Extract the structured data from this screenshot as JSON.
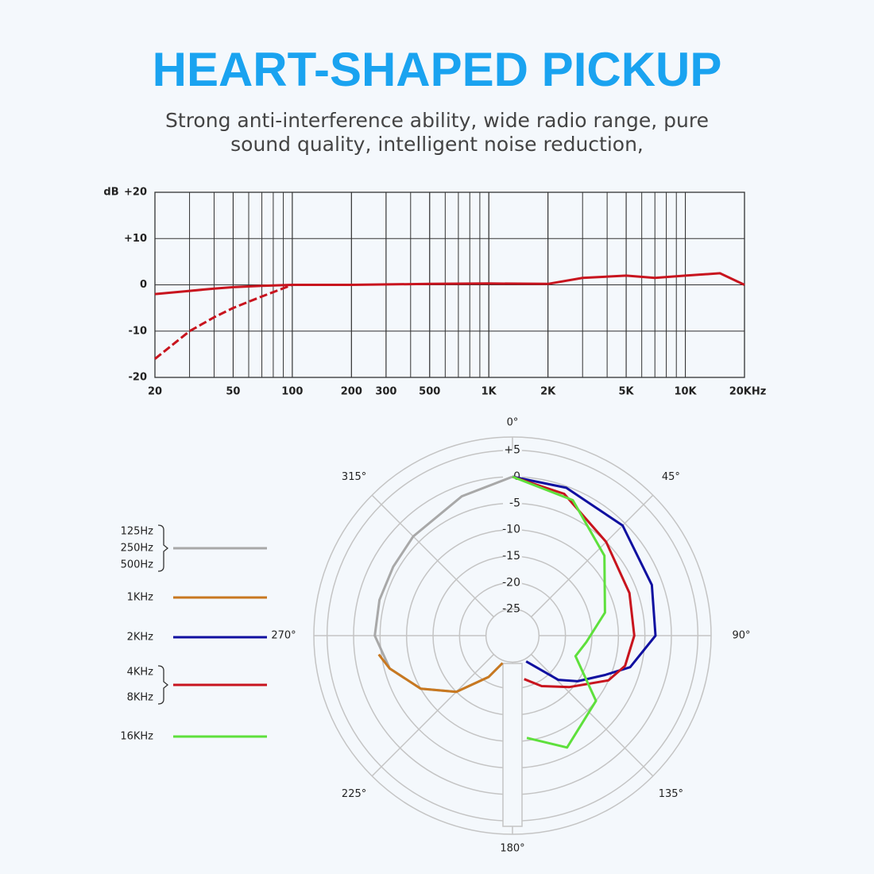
{
  "header": {
    "title": "HEART-SHAPED PICKUP",
    "subtitle": [
      "Strong anti-interference ability, wide radio range, pure",
      "sound quality, intelligent noise reduction,"
    ]
  },
  "chart_data": [
    {
      "type": "line",
      "y_label": "dB",
      "log_x": true,
      "grid": true,
      "minor_grid": true,
      "xlim": [
        20,
        20000
      ],
      "ylim": [
        -20,
        20
      ],
      "xticks": [
        20,
        50,
        100,
        200,
        300,
        500,
        {
          "value": 1000,
          "label": "1K"
        },
        {
          "value": 2000,
          "label": "2K"
        },
        {
          "value": 5000,
          "label": "5K"
        },
        {
          "value": 10000,
          "label": "10K"
        },
        {
          "value": 20000,
          "label": "20KHz"
        }
      ],
      "yticks": [
        {
          "value": 20,
          "label": "+20"
        },
        {
          "value": 10,
          "label": "+10"
        },
        0,
        -10,
        -20
      ],
      "x": [
        20,
        30,
        40,
        50,
        70,
        100,
        200,
        500,
        1000,
        2000,
        3000,
        5000,
        7000,
        10000,
        15000,
        20000
      ],
      "series": [
        {
          "color": "#c8141e",
          "style": "solid",
          "values": [
            -2,
            -1.3,
            -0.8,
            -0.5,
            -0.2,
            0,
            0,
            0.2,
            0.3,
            0.2,
            1.5,
            2,
            1.5,
            2,
            2.5,
            0
          ]
        },
        {
          "color": "#c8141e",
          "style": "dashed",
          "values": [
            -16,
            -10,
            -7,
            -5,
            -2.5,
            0,
            null,
            null,
            null,
            null,
            null,
            null,
            null,
            null,
            null,
            null
          ]
        }
      ]
    },
    {
      "type": "polar",
      "rlim": [
        -30,
        7.5
      ],
      "rticks": [
        {
          "value": 5,
          "label": "+5"
        },
        0,
        -5,
        -10,
        -15,
        -20,
        -25
      ],
      "angle_ticks": [
        {
          "value": 0,
          "label": "0°"
        },
        {
          "value": 45,
          "label": "45°"
        },
        {
          "value": 90,
          "label": "90°"
        },
        {
          "value": 135,
          "label": "135°"
        },
        {
          "value": 180,
          "label": "180°"
        },
        {
          "value": 225,
          "label": "225°"
        },
        {
          "value": 270,
          "label": "270°"
        },
        {
          "value": 315,
          "label": "315°"
        }
      ],
      "series": [
        {
          "name": [
            "125Hz",
            "250Hz",
            "500Hz"
          ],
          "color": "#a8a8a8",
          "angles": [
            360,
            340,
            315,
            300,
            285,
            270,
            255,
            240,
            225,
            210,
            200
          ],
          "values": [
            0,
            -2,
            -3.5,
            -4,
            -4,
            -4,
            -6,
            -10,
            -15,
            -21,
            -24.5
          ]
        },
        {
          "name": [
            "1KHz"
          ],
          "color": "#c87820",
          "angles": [
            262,
            255,
            240,
            225,
            210,
            200
          ],
          "values": [
            -4.5,
            -6,
            -10,
            -15,
            -21,
            -24.5
          ]
        },
        {
          "name": [
            "2KHz"
          ],
          "color": "#1010a0",
          "angles": [
            0,
            20,
            45,
            70,
            90,
            105,
            113,
            125,
            134,
            152
          ],
          "values": [
            0,
            -0.3,
            -0.6,
            -2,
            -3,
            -7,
            -11,
            -15,
            -18,
            -24.5
          ]
        },
        {
          "name": [
            "4KHz",
            "8KHz"
          ],
          "color": "#c8141e",
          "angles": [
            0,
            20,
            45,
            70,
            90,
            105,
            115,
            132,
            150,
            165
          ],
          "values": [
            0,
            -1.5,
            -5,
            -6.5,
            -7,
            -8,
            -10,
            -15.5,
            -19,
            -21.5
          ]
        },
        {
          "name": [
            "16KHz"
          ],
          "color": "#5ee03c",
          "angles": [
            0,
            24,
            49,
            76,
            95,
            108,
            128,
            154,
            172
          ],
          "values": [
            0,
            -2,
            -7,
            -12,
            -16,
            -17.5,
            -10,
            -6.5,
            -10.5
          ]
        }
      ]
    }
  ]
}
